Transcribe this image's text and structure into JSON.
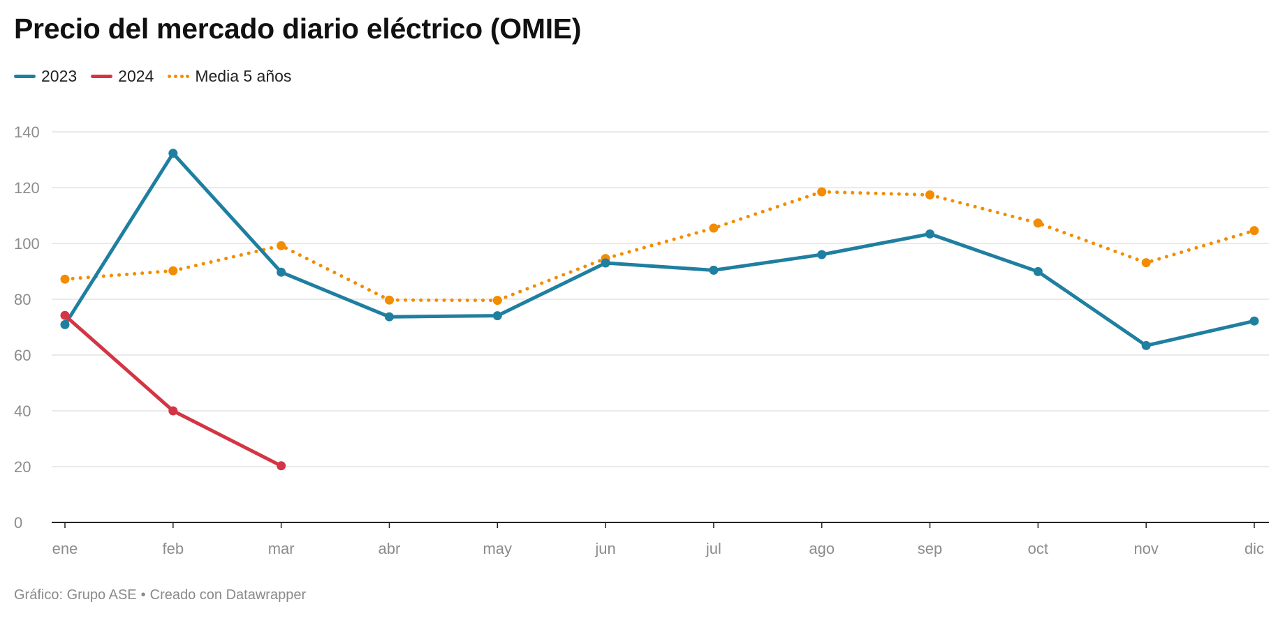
{
  "title": "Precio del mercado diario eléctrico (OMIE)",
  "footer": {
    "source": "Gráfico: Grupo ASE",
    "separator": "•",
    "credit": "Creado con Datawrapper"
  },
  "chart_data": {
    "type": "line",
    "title": "Precio del mercado diario eléctrico (OMIE)",
    "xlabel": "",
    "ylabel": "",
    "categories": [
      "ene",
      "feb",
      "mar",
      "abr",
      "may",
      "jun",
      "jul",
      "ago",
      "sep",
      "oct",
      "nov",
      "dic"
    ],
    "ylim": [
      0,
      140
    ],
    "yticks": [
      0,
      20,
      40,
      60,
      80,
      100,
      120,
      140
    ],
    "grid": true,
    "legend_position": "top-left",
    "series": [
      {
        "name": "2023",
        "color": "#1f7fa0",
        "style": "solid",
        "values": [
          70.9,
          132.3,
          89.7,
          73.7,
          74.1,
          93.0,
          90.4,
          96.0,
          103.4,
          89.9,
          63.4,
          72.2
        ]
      },
      {
        "name": "2024",
        "color": "#d33545",
        "style": "solid",
        "values": [
          74.2,
          40.0,
          20.3,
          null,
          null,
          null,
          null,
          null,
          null,
          null,
          null,
          null
        ]
      },
      {
        "name": "Media 5 años",
        "color": "#f28c00",
        "style": "dotted",
        "values": [
          87.2,
          90.2,
          99.2,
          79.7,
          79.6,
          94.6,
          105.5,
          118.5,
          117.4,
          107.3,
          93.1,
          104.6
        ]
      }
    ]
  }
}
